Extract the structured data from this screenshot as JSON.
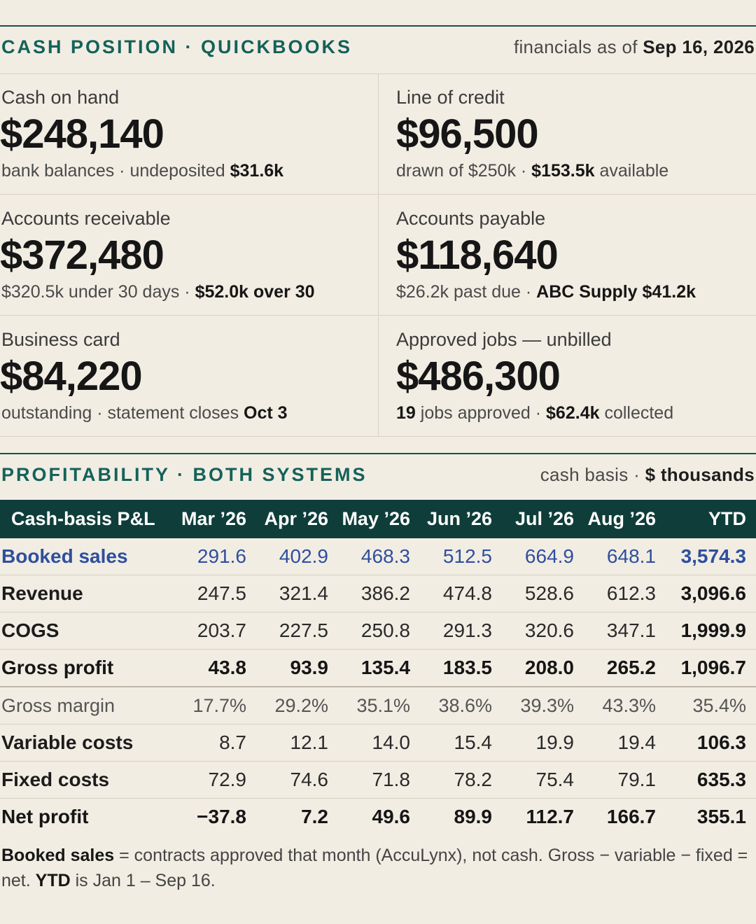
{
  "cash_section": {
    "title": "CASH POSITION · QUICKBOOKS",
    "asof_prefix": "financials as of",
    "asof_date": "Sep 16, 2026"
  },
  "cards": [
    {
      "label": "Cash on hand",
      "value": "$248,140",
      "note_a": "bank balances · undeposited ",
      "note_b": "$31.6k",
      "note_c": ""
    },
    {
      "label": "Line of credit",
      "value": "$96,500",
      "note_a": "drawn of $250k · ",
      "note_b": "$153.5k",
      "note_c": " available"
    },
    {
      "label": "Accounts receivable",
      "value": "$372,480",
      "note_a": "$320.5k under 30 days · ",
      "note_b": "$52.0k over 30",
      "note_c": ""
    },
    {
      "label": "Accounts payable",
      "value": "$118,640",
      "note_a": "$26.2k past due · ",
      "note_b": "ABC Supply $41.2k",
      "note_c": ""
    },
    {
      "label": "Business card",
      "value": "$84,220",
      "note_a": "outstanding · statement closes ",
      "note_b": "Oct 3",
      "note_c": ""
    },
    {
      "label": "Approved jobs — unbilled",
      "value": "$486,300",
      "note_a": "",
      "note_b": "19",
      "note_c": " jobs approved · ",
      "note_d": "$62.4k",
      "note_e": " collected"
    }
  ],
  "profit_section": {
    "title": "PROFITABILITY · BOTH SYSTEMS",
    "basis": "cash basis · ",
    "units": "$ thousands"
  },
  "table": {
    "headers": [
      "Cash-basis P&L",
      "Mar ’26",
      "Apr ’26",
      "May ’26",
      "Jun ’26",
      "Jul ’26",
      "Aug ’26",
      "YTD"
    ],
    "rows": [
      {
        "label": "Booked sales",
        "values": [
          "291.6",
          "402.9",
          "468.3",
          "512.5",
          "664.9",
          "648.1"
        ],
        "ytd": "3,574.3"
      },
      {
        "label": "Revenue",
        "values": [
          "247.5",
          "321.4",
          "386.2",
          "474.8",
          "528.6",
          "612.3"
        ],
        "ytd": "3,096.6"
      },
      {
        "label": "COGS",
        "values": [
          "203.7",
          "227.5",
          "250.8",
          "291.3",
          "320.6",
          "347.1"
        ],
        "ytd": "1,999.9"
      },
      {
        "label": "Gross profit",
        "values": [
          "43.8",
          "93.9",
          "135.4",
          "183.5",
          "208.0",
          "265.2"
        ],
        "ytd": "1,096.7"
      },
      {
        "label": "Gross margin",
        "values": [
          "17.7%",
          "29.2%",
          "35.1%",
          "38.6%",
          "39.3%",
          "43.3%"
        ],
        "ytd": "35.4%"
      },
      {
        "label": "Variable costs",
        "values": [
          "8.7",
          "12.1",
          "14.0",
          "15.4",
          "19.9",
          "19.4"
        ],
        "ytd": "106.3"
      },
      {
        "label": "Fixed costs",
        "values": [
          "72.9",
          "74.6",
          "71.8",
          "78.2",
          "75.4",
          "79.1"
        ],
        "ytd": "635.3"
      },
      {
        "label": "Net profit",
        "values": [
          "−37.8",
          "7.2",
          "49.6",
          "89.9",
          "112.7",
          "166.7"
        ],
        "ytd": "355.1"
      }
    ]
  },
  "footnote": {
    "t1": "Booked sales",
    "t2": " = contracts approved that month (AccuLynx), not cash. Gross − variable − fixed = net. ",
    "t3": "YTD",
    "t4": " is Jan 1 – Sep 16."
  }
}
